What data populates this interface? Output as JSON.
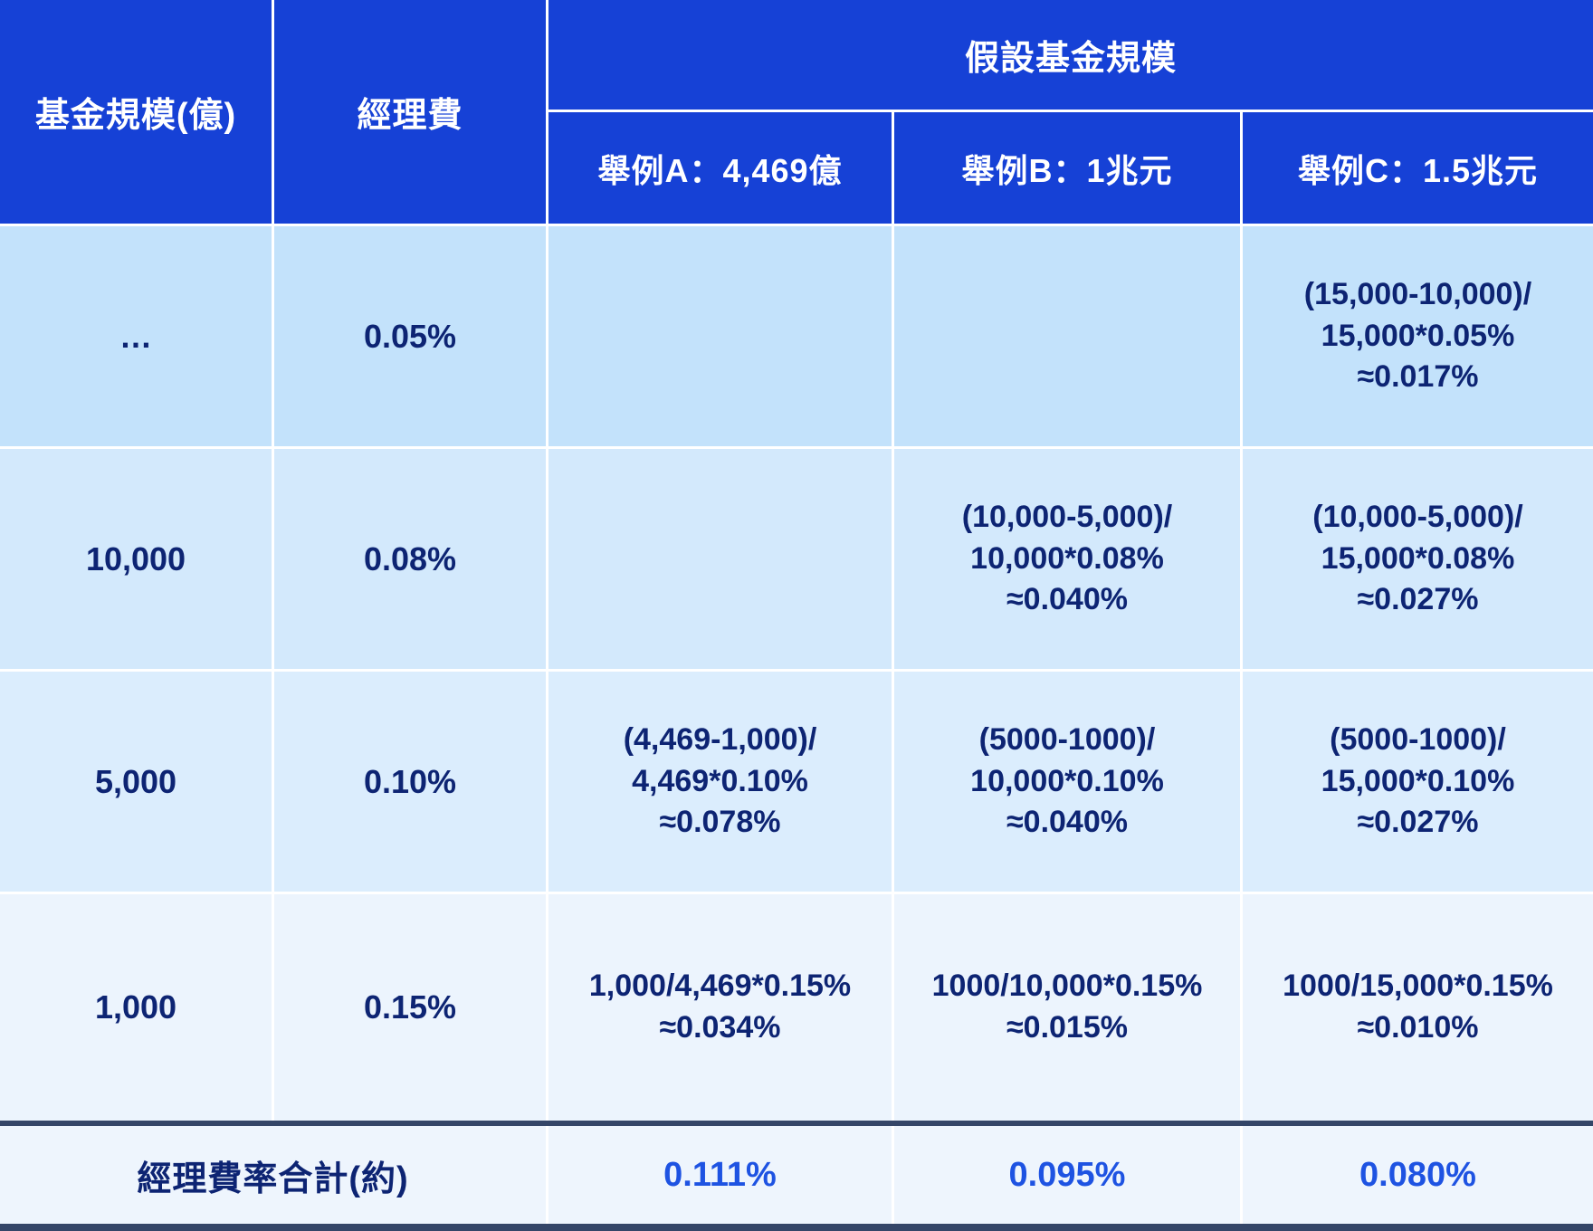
{
  "colors": {
    "header_blue": "#1641d6",
    "row1_bg": "#c3e2fb",
    "row2_bg": "#d3e9fc",
    "row3_bg": "#dbedfd",
    "row4_bg": "#ecf4fd",
    "footer_bg": "#eef5fd",
    "divider_navy": "#344668",
    "text_navy": "#0d2473",
    "total_blue": "#1e53e2",
    "grid_line": "#ffffff"
  },
  "chart_data": {
    "type": "table",
    "header": {
      "fund_size": "基金規模(億)",
      "fee": "經理費",
      "group": "假設基金規模",
      "example_a": "舉例A：4,469億",
      "example_b": "舉例B：1兆元",
      "example_c": "舉例C：1.5兆元"
    },
    "rows": [
      {
        "size": "…",
        "fee": "0.05%",
        "example_a": "",
        "example_b": "",
        "example_c": "(15,000-10,000)/\n15,000*0.05%\n≈0.017%"
      },
      {
        "size": "10,000",
        "fee": "0.08%",
        "example_a": "",
        "example_b": "(10,000-5,000)/\n10,000*0.08%\n≈0.040%",
        "example_c": "(10,000-5,000)/\n15,000*0.08%\n≈0.027%"
      },
      {
        "size": "5,000",
        "fee": "0.10%",
        "example_a": "(4,469-1,000)/\n4,469*0.10%\n≈0.078%",
        "example_b": "(5000-1000)/\n10,000*0.10%\n≈0.040%",
        "example_c": "(5000-1000)/\n15,000*0.10%\n≈0.027%"
      },
      {
        "size": "1,000",
        "fee": "0.15%",
        "example_a": "1,000/4,469*0.15%\n≈0.034%",
        "example_b": "1000/10,000*0.15%\n≈0.015%",
        "example_c": "1000/15,000*0.15%\n≈0.010%"
      }
    ],
    "footer": {
      "label": "經理費率合計(約)",
      "total_a": "0.111%",
      "total_b": "0.095%",
      "total_c": "0.080%"
    }
  }
}
